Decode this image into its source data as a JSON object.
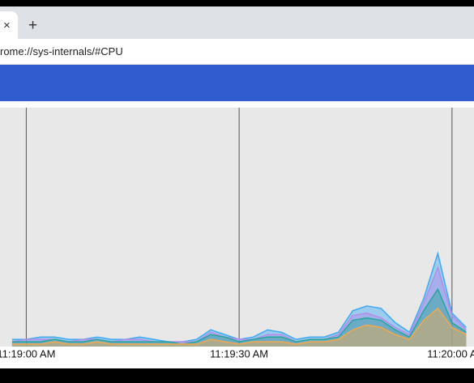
{
  "browser": {
    "tab_close": "×",
    "new_tab": "+",
    "address": "rome://sys-internals/#CPU"
  },
  "chart_data": {
    "type": "area",
    "x": [
      -2,
      0,
      2,
      4,
      6,
      8,
      10,
      12,
      14,
      16,
      18,
      20,
      22,
      24,
      26,
      28,
      30,
      32,
      34,
      36,
      38,
      40,
      42,
      44,
      46,
      48,
      50,
      52,
      54,
      56,
      58,
      60,
      62
    ],
    "xlim": [
      -3.7,
      63.1
    ],
    "xticks": [
      {
        "value": 0,
        "label": "11:19:00 AM"
      },
      {
        "value": 30,
        "label": "11:19:30 AM"
      },
      {
        "value": 60,
        "label": "11:20:00 A"
      }
    ],
    "ylim": [
      0,
      100
    ],
    "grid": true,
    "series": [
      {
        "color": "#3fa9f5",
        "values": [
          3,
          3,
          4,
          4,
          3,
          3,
          4,
          3,
          3,
          4,
          3,
          2,
          2,
          3,
          7,
          5,
          3,
          4,
          7,
          6,
          3,
          4,
          4,
          6,
          15,
          17,
          16,
          10,
          6,
          20,
          39,
          14,
          8
        ]
      },
      {
        "color": "#b38ee8",
        "values": [
          2,
          3,
          3,
          3,
          2,
          3,
          3,
          2,
          3,
          3,
          2,
          2,
          2,
          2,
          6,
          4,
          3,
          3,
          5,
          5,
          2,
          3,
          3,
          5,
          13,
          14,
          12,
          8,
          5,
          18,
          33,
          13,
          7
        ]
      },
      {
        "color": "#26a69a",
        "values": [
          2,
          2,
          2,
          3,
          2,
          2,
          3,
          2,
          2,
          2,
          2,
          2,
          1,
          2,
          5,
          4,
          2,
          3,
          4,
          4,
          2,
          3,
          3,
          4,
          11,
          12,
          11,
          7,
          4,
          15,
          24,
          10,
          6
        ]
      },
      {
        "color": "#f4a84a",
        "values": [
          1,
          1,
          1,
          2,
          1,
          1,
          2,
          1,
          1,
          1,
          1,
          1,
          1,
          1,
          3,
          2,
          1,
          2,
          2,
          2,
          1,
          2,
          2,
          3,
          7,
          9,
          8,
          5,
          3,
          11,
          16,
          8,
          5
        ]
      }
    ]
  }
}
